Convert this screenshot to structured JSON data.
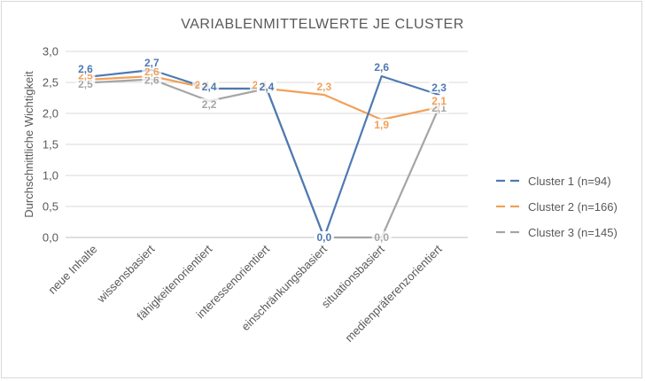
{
  "chart_data": {
    "type": "line",
    "title": "VARIABLENMITTELWERTE JE CLUSTER",
    "ylabel": "Durchschnittliche Wichtigkeit",
    "xlabel": "",
    "ylim": [
      0,
      3
    ],
    "yticks": [
      "0,0",
      "0,5",
      "1,0",
      "1,5",
      "2,0",
      "2,5",
      "3,0"
    ],
    "grid": true,
    "legend": "right",
    "categories": [
      "neue Inhalte",
      "wissensbasiert",
      "fähigkeitenorientiert",
      "interessenorientiert",
      "einschränkungsbasiert",
      "situationsbasiert",
      "medienpräferenzorientiert"
    ],
    "series": [
      {
        "name": "Cluster 1 (n=94)",
        "color": "#4e79b3",
        "values": [
          2.6,
          2.7,
          2.4,
          2.4,
          0.0,
          2.6,
          2.3
        ],
        "labels": [
          "2,6",
          "2,7",
          "2,4",
          "2,4",
          "0,0",
          "2,6",
          "2,3"
        ]
      },
      {
        "name": "Cluster 2 (n=166)",
        "color": "#f0a15a",
        "values": [
          2.55,
          2.6,
          2.4,
          2.4,
          2.3,
          1.9,
          2.1
        ],
        "labels": [
          "2,5",
          "2,6",
          "2,4",
          "2,4",
          "2,3",
          "1,9",
          "2,1"
        ]
      },
      {
        "name": "Cluster 3 (n=145)",
        "color": "#a5a5a5",
        "values": [
          2.5,
          2.55,
          2.2,
          2.4,
          0.0,
          0.0,
          2.1
        ],
        "labels": [
          "2,5",
          "2,6",
          "2,2",
          "2,4",
          "0,0",
          "0,0",
          "2,1"
        ]
      }
    ]
  }
}
